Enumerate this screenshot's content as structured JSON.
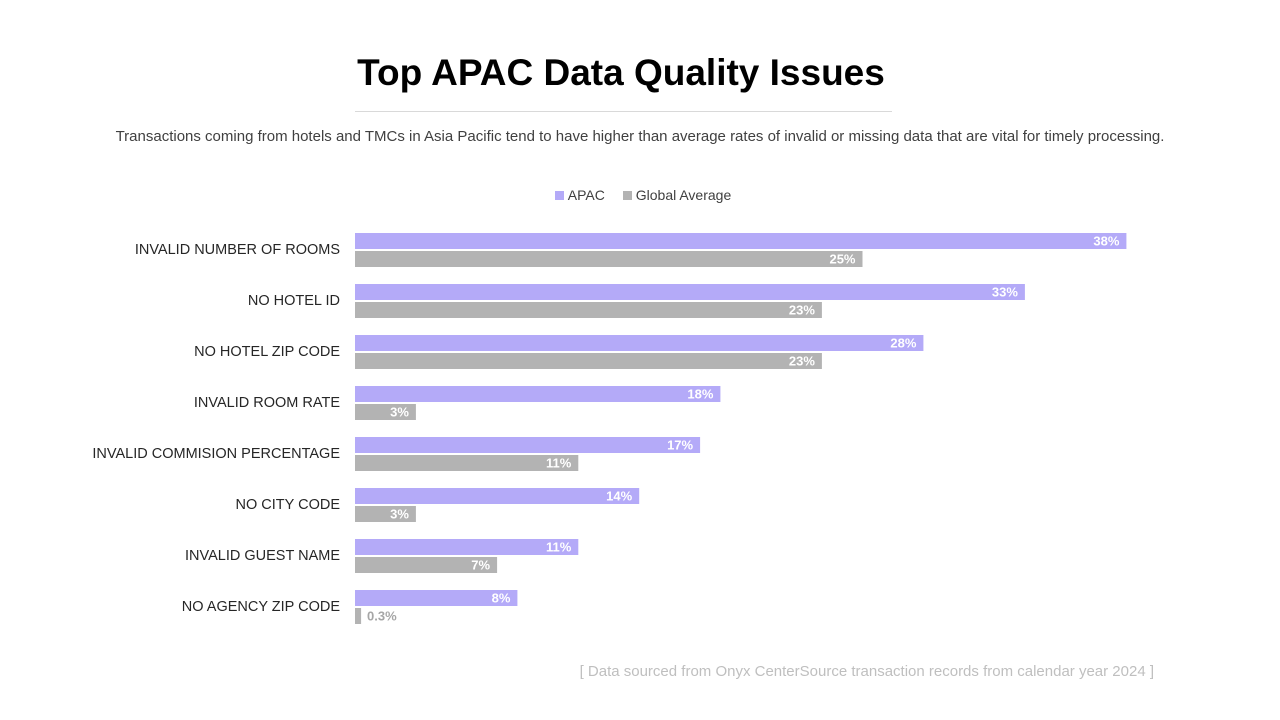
{
  "slide": {
    "title": "Top APAC Data Quality Issues",
    "subtitle": "Transactions coming from hotels and TMCs in Asia Pacific tend to have higher than average rates of invalid or missing data that are vital for timely processing.",
    "source_note": "[ Data sourced from Onyx CenterSource transaction records from calendar year 2024 ]"
  },
  "colors": {
    "apac": "#b4aaf8",
    "global": "#b3b3b3",
    "label_inside": "#ffffff",
    "label_outside": "#a6a6a6"
  },
  "chart_data": {
    "type": "bar",
    "orientation": "horizontal",
    "categories": [
      "INVALID NUMBER OF ROOMS",
      "NO HOTEL ID",
      "NO HOTEL ZIP CODE",
      "INVALID ROOM RATE",
      "INVALID COMMISION PERCENTAGE",
      "NO CITY CODE",
      "INVALID GUEST NAME",
      "NO AGENCY ZIP CODE"
    ],
    "series": [
      {
        "name": "APAC",
        "values": [
          38,
          33,
          28,
          18,
          17,
          14,
          11,
          8
        ],
        "labels": [
          "38%",
          "33%",
          "28%",
          "18%",
          "17%",
          "14%",
          "11%",
          "8%"
        ]
      },
      {
        "name": "Global Average",
        "values": [
          25,
          23,
          23,
          3,
          11,
          3,
          7,
          0.3
        ],
        "labels": [
          "25%",
          "23%",
          "23%",
          "3%",
          "11%",
          "3%",
          "7%",
          "0.3%"
        ]
      }
    ],
    "xlim": [
      0,
      40
    ],
    "legend": "top-center",
    "grid": false
  }
}
